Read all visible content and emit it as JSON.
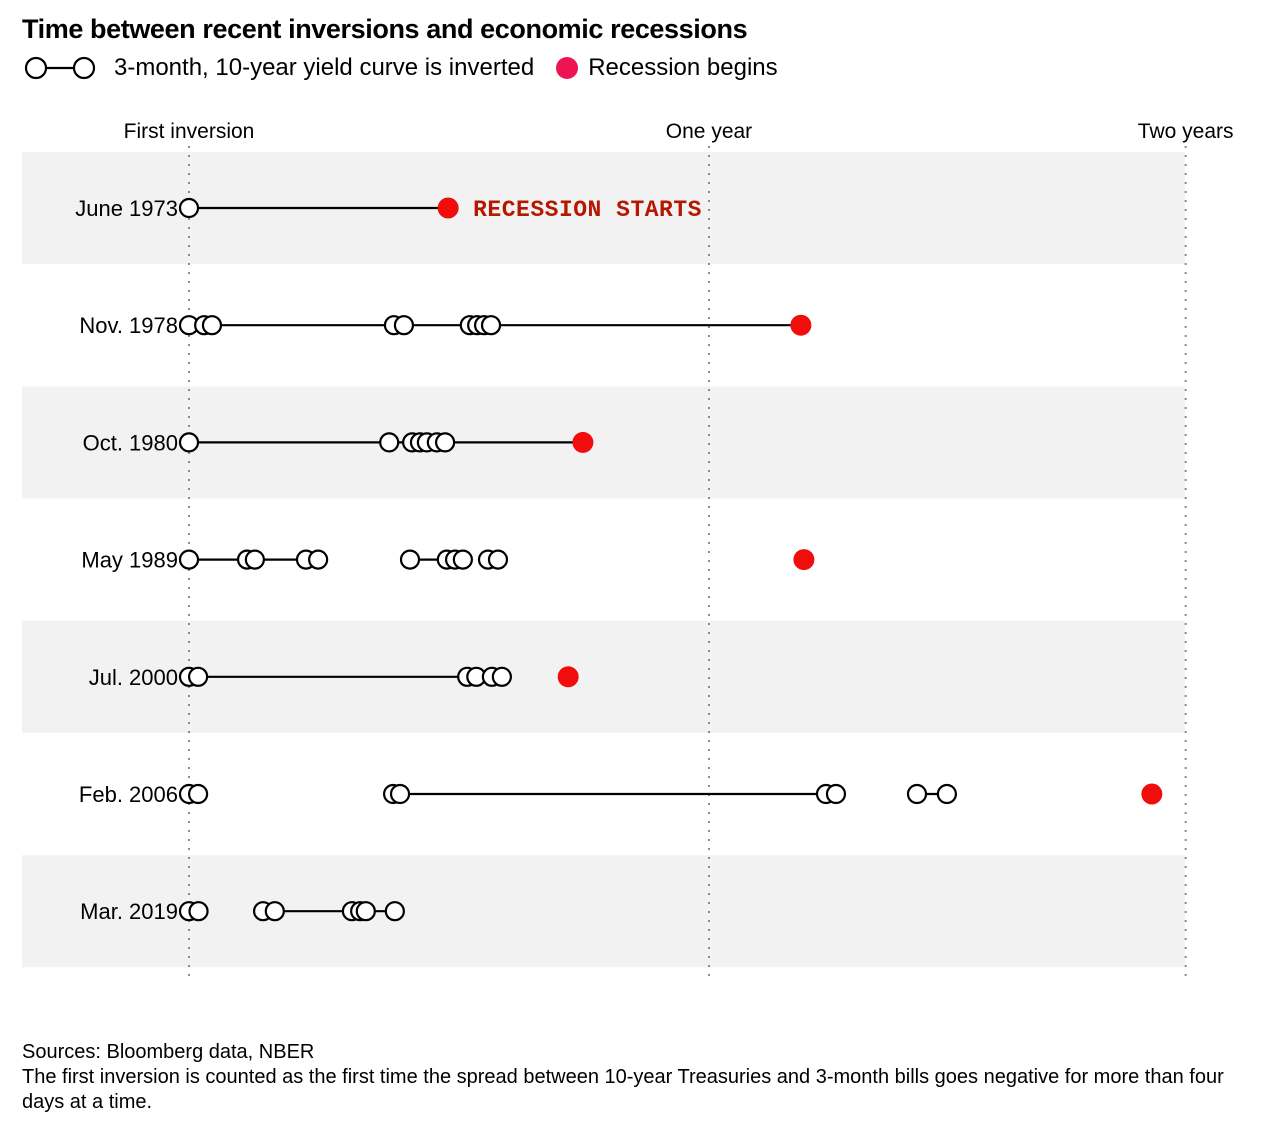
{
  "title": "Time between recent inversions and economic recessions",
  "legend": {
    "inversion_label": "3-month, 10-year yield curve is inverted",
    "recession_label": "Recession begins",
    "recession_dot_color": "#ec1552"
  },
  "footer": {
    "sources": "Sources: Bloomberg data, NBER",
    "note": "The first inversion is counted as the first time the spread between 10-year Treasuries and 3-month bills goes negative for more than four days at a time."
  },
  "chart_data": {
    "type": "timeline-dot",
    "unit": "months since first inversion",
    "axis": {
      "gridlines": [
        {
          "label": "First inversion",
          "month": 0
        },
        {
          "label": "One year",
          "month": 12
        },
        {
          "label": "Two years",
          "month": 23
        }
      ]
    },
    "colors": {
      "band": "#f2f2f2",
      "line": "#000000",
      "circle_stroke": "#000000",
      "circle_fill": "#ffffff",
      "recession_dot": "#f20d0d",
      "grid_dot": "#8a8a8a",
      "annotation": "#b51800"
    },
    "rows": [
      {
        "label": "June 1973",
        "circles": [
          0
        ],
        "segments": [
          [
            0,
            5.98
          ]
        ],
        "recession_month": 5.98,
        "annotation": "RECESSION STARTS"
      },
      {
        "label": "Nov. 1978",
        "circles": [
          0,
          0.35,
          0.53,
          4.73,
          4.96,
          6.48,
          6.65,
          6.81,
          6.97
        ],
        "segments": [
          [
            0,
            14.12
          ]
        ],
        "recession_month": 14.12,
        "annotation": null
      },
      {
        "label": "Oct. 1980",
        "circles": [
          0,
          4.62,
          5.15,
          5.33,
          5.49,
          5.72,
          5.91
        ],
        "segments": [
          [
            0,
            9.09
          ]
        ],
        "recession_month": 9.09,
        "annotation": null
      },
      {
        "label": "May 1989",
        "circles": [
          0,
          1.34,
          1.52,
          2.7,
          2.98,
          5.1,
          5.95,
          6.14,
          6.32,
          6.9,
          7.13
        ],
        "segments": [
          [
            0,
            2.98
          ],
          [
            5.1,
            6.32
          ]
        ],
        "recession_month": 14.19,
        "annotation": null
      },
      {
        "label": "Jul. 2000",
        "circles": [
          0,
          0.21,
          6.42,
          6.63,
          6.99,
          7.22
        ],
        "segments": [
          [
            0,
            6.63
          ]
        ],
        "recession_month": 8.75,
        "annotation": null
      },
      {
        "label": "Feb. 2006",
        "circles": [
          0,
          0.21,
          4.71,
          4.87,
          14.7,
          14.93,
          16.8,
          17.49
        ],
        "segments": [
          [
            4.71,
            14.93
          ],
          [
            16.8,
            17.49
          ]
        ],
        "recession_month": 22.22,
        "annotation": null
      },
      {
        "label": "Mar. 2019",
        "circles": [
          0,
          0.22,
          1.71,
          1.98,
          3.76,
          3.95,
          4.08,
          4.75
        ],
        "segments": [
          [
            1.98,
            4.75
          ]
        ],
        "recession_month": null,
        "annotation": null
      }
    ]
  }
}
